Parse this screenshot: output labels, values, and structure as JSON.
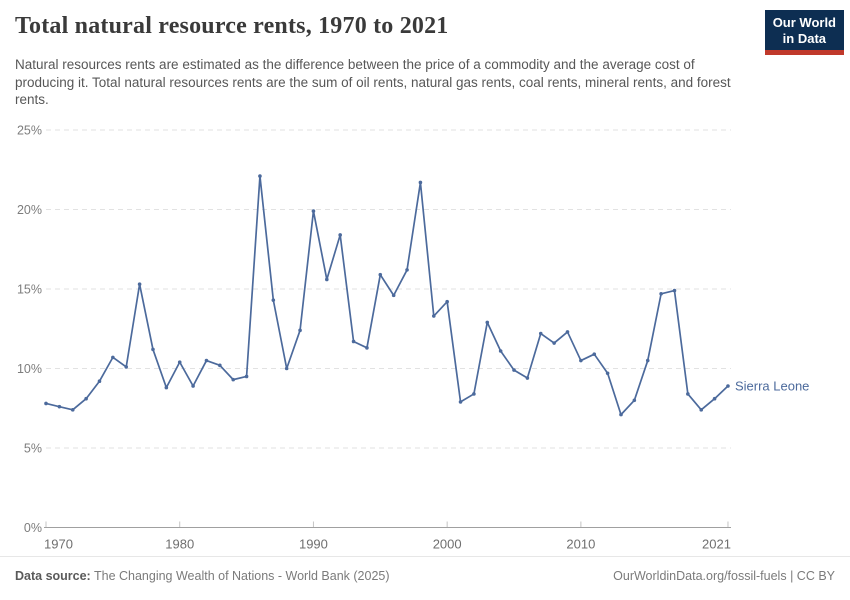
{
  "header": {
    "title": "Total natural resource rents, 1970 to 2021",
    "subtitle": "Natural resources rents are estimated as the difference between the price of a commodity and the average cost of producing it. Total natural resources rents are the sum of oil rents, natural gas rents, coal rents, mineral rents, and forest rents.",
    "logo": {
      "line1": "Our World",
      "line2": "in Data",
      "bg_color": "#0d2e52",
      "accent_color": "#c0392b"
    }
  },
  "chart_data": {
    "type": "line",
    "title": "Total natural resource rents, 1970 to 2021",
    "entity": "Sierra Leone",
    "unit": "%",
    "x": [
      1970,
      1971,
      1972,
      1973,
      1974,
      1975,
      1976,
      1977,
      1978,
      1979,
      1980,
      1981,
      1982,
      1983,
      1984,
      1985,
      1986,
      1987,
      1988,
      1989,
      1990,
      1991,
      1992,
      1993,
      1994,
      1995,
      1996,
      1997,
      1998,
      1999,
      2000,
      2001,
      2002,
      2003,
      2004,
      2005,
      2006,
      2007,
      2008,
      2009,
      2010,
      2011,
      2012,
      2013,
      2014,
      2015,
      2016,
      2017,
      2018,
      2019,
      2020,
      2021
    ],
    "values": [
      7.8,
      7.6,
      7.4,
      8.1,
      9.2,
      10.7,
      10.1,
      15.3,
      11.2,
      8.8,
      10.4,
      8.9,
      10.5,
      10.2,
      9.3,
      9.5,
      22.1,
      14.3,
      10.0,
      12.4,
      19.9,
      15.6,
      18.4,
      11.7,
      11.3,
      15.9,
      14.6,
      16.2,
      21.7,
      13.3,
      14.2,
      7.9,
      8.4,
      12.9,
      11.1,
      9.9,
      9.4,
      12.2,
      11.6,
      12.3,
      10.5,
      10.9,
      9.7,
      7.1,
      8.0,
      10.5,
      14.7,
      14.9,
      8.4,
      7.4,
      8.1,
      8.9
    ],
    "ylim": [
      0,
      25
    ],
    "yticks": [
      0,
      5,
      10,
      15,
      20,
      25
    ],
    "ytick_suffix": "%",
    "xticks": [
      1970,
      1980,
      1990,
      2000,
      2010,
      2021
    ],
    "grid": "horizontal-dashed",
    "legend_position": "end-of-line-label",
    "line_color": "#4c6a9c",
    "entity_label_color": "#4c6a9c",
    "gridline_color": "#e2e2e2",
    "axis_color": "#a0a0a0",
    "tick_color": "#c4c4c4",
    "ytick_label_color": "#7d7d7d",
    "xtick_label_color": "#6f6f6f"
  },
  "footer": {
    "source_label": "Data source:",
    "source_text": " The Changing Wealth of Nations - World Bank (2025)",
    "url": "OurWorldinData.org/fossil-fuels",
    "license": " | CC BY"
  }
}
